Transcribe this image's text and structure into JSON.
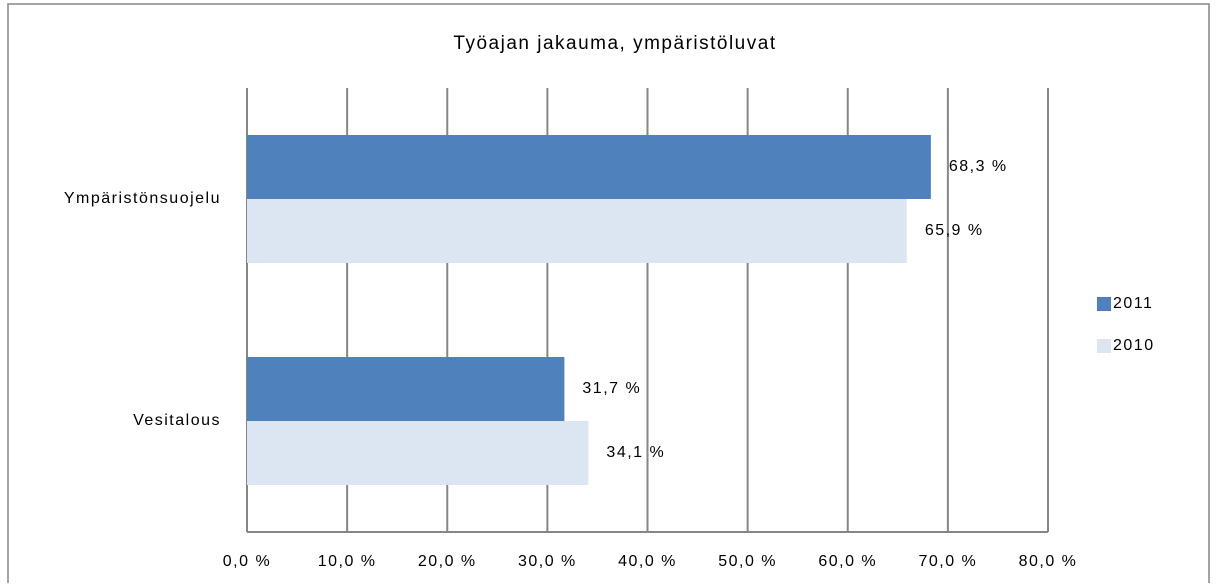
{
  "chart_data": {
    "type": "barh",
    "title": "Työajan jakauma, ympäristöluvat",
    "categories": [
      "Ympäristönsuojelu",
      "Vesitalous"
    ],
    "series": [
      {
        "name": "2011",
        "color": "#4f81bd",
        "values": [
          68.3,
          31.7
        ],
        "value_labels": [
          "68,3 %",
          "31,7 %"
        ]
      },
      {
        "name": "2010",
        "color": "#dce6f2",
        "values": [
          65.9,
          34.1
        ],
        "value_labels": [
          "65,9 %",
          "34,1 %"
        ]
      }
    ],
    "xlim": [
      0,
      80
    ],
    "xticks": [
      {
        "value": 0,
        "label": "0,0 %"
      },
      {
        "value": 10,
        "label": "10,0 %"
      },
      {
        "value": 20,
        "label": "20,0 %"
      },
      {
        "value": 30,
        "label": "30,0 %"
      },
      {
        "value": 40,
        "label": "40,0 %"
      },
      {
        "value": 50,
        "label": "50,0 %"
      },
      {
        "value": 60,
        "label": "60,0 %"
      },
      {
        "value": 70,
        "label": "70,0 %"
      },
      {
        "value": 80,
        "label": "80,0 %"
      }
    ],
    "grid": true,
    "legend": "right"
  }
}
